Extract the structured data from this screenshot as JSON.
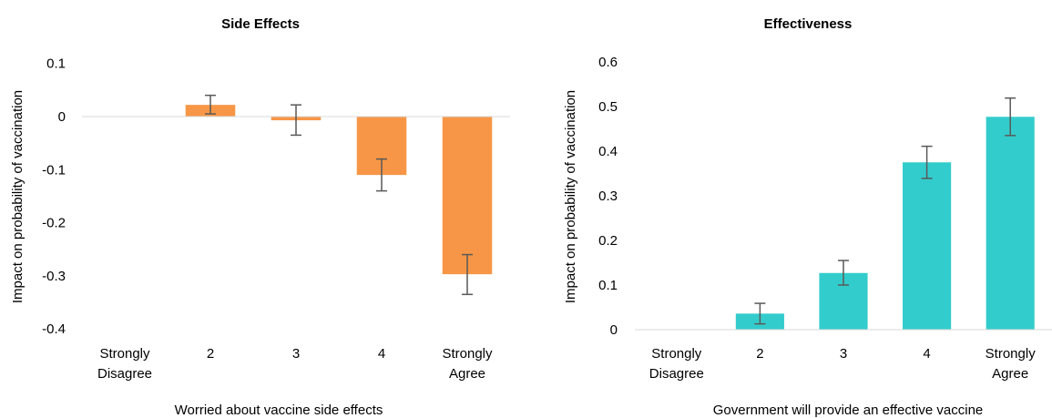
{
  "chart_data": [
    {
      "type": "bar",
      "title": "Side Effects",
      "xlabel": "Worried about vaccine side effects",
      "ylabel": "Impact on probability of vaccination",
      "categories": [
        "Strongly Disagree",
        "2",
        "3",
        "4",
        "Strongly Agree"
      ],
      "values": [
        0.0,
        0.022,
        -0.007,
        -0.11,
        -0.297
      ],
      "error_low": [
        0.0,
        0.005,
        -0.035,
        -0.14,
        -0.335
      ],
      "error_high": [
        0.0,
        0.04,
        0.022,
        -0.08,
        -0.26
      ],
      "yticks": [
        0.1,
        0,
        -0.1,
        -0.2,
        -0.3,
        -0.4
      ],
      "ylim": [
        -0.4,
        0.1
      ],
      "bar_color": "#F79646",
      "grid": false
    },
    {
      "type": "bar",
      "title": "Effectiveness",
      "xlabel": "Government will provide an effective vaccine",
      "ylabel": "Impact on probability of vaccination",
      "categories": [
        "Strongly Disagree",
        "2",
        "3",
        "4",
        "Strongly Agree"
      ],
      "values": [
        0.0,
        0.036,
        0.127,
        0.375,
        0.477
      ],
      "error_low": [
        0.0,
        0.013,
        0.1,
        0.339,
        0.435
      ],
      "error_high": [
        0.0,
        0.059,
        0.155,
        0.411,
        0.519
      ],
      "yticks": [
        0.6,
        0.5,
        0.4,
        0.3,
        0.2,
        0.1,
        0
      ],
      "ylim": [
        0,
        0.6
      ],
      "bar_color": "#33CCCC",
      "grid": false
    }
  ]
}
